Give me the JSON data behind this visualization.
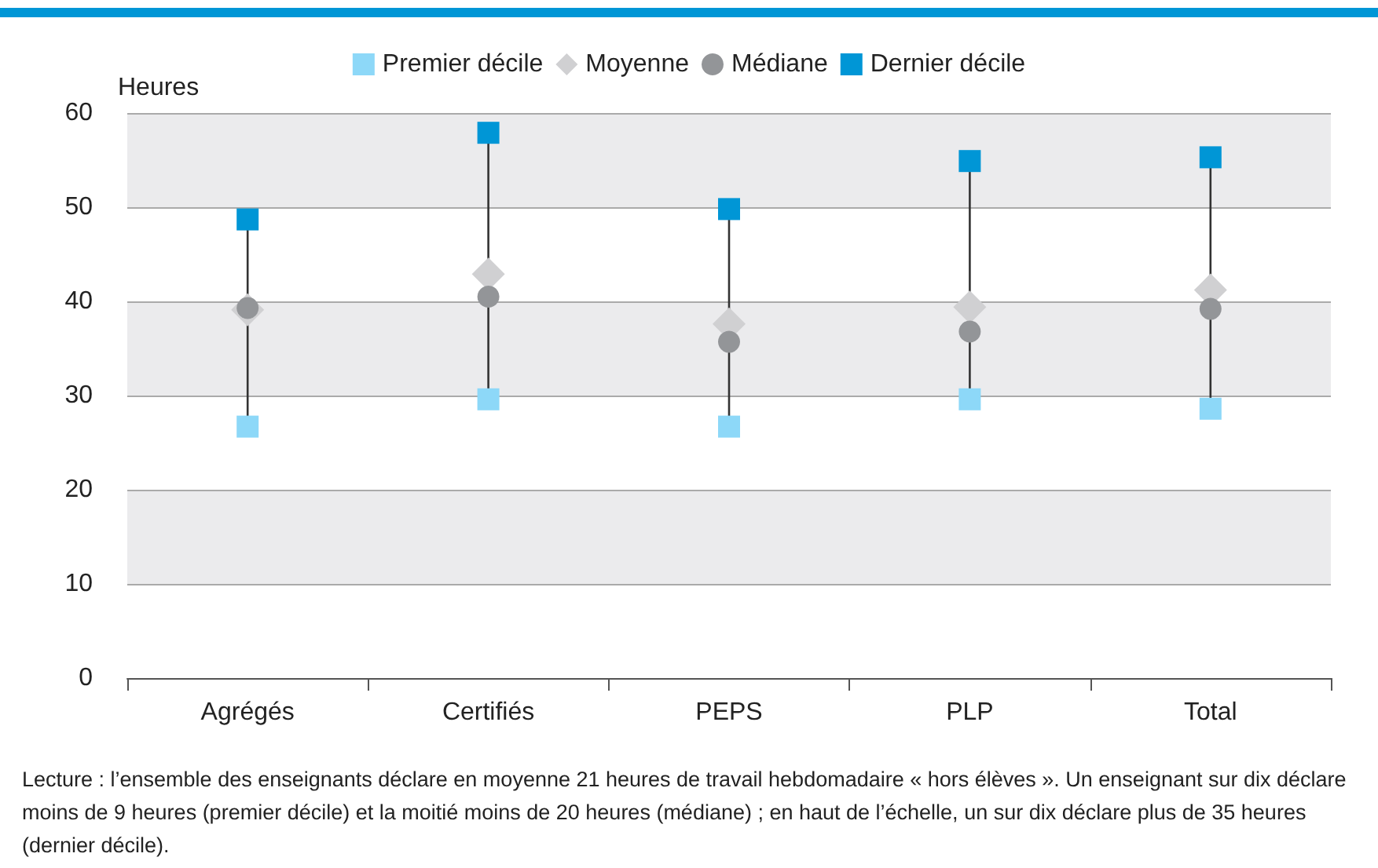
{
  "chart_data": {
    "type": "scatter",
    "ylabel": "Heures",
    "categories": [
      "Agrégés",
      "Certifiés",
      "PEPS",
      "PLP",
      "Total"
    ],
    "series": [
      {
        "name": "Premier décile",
        "color": "#8dd8f8",
        "marker": "square",
        "values": [
          26.7,
          29.6,
          26.7,
          29.6,
          28.6
        ]
      },
      {
        "name": "Moyenne",
        "color": "#d0d0d2",
        "marker": "diamond",
        "values": [
          39.1,
          42.9,
          37.6,
          39.4,
          41.2
        ]
      },
      {
        "name": "Médiane",
        "color": "#939598",
        "marker": "circle",
        "values": [
          39.3,
          40.5,
          35.7,
          36.8,
          39.2
        ]
      },
      {
        "name": "Dernier décile",
        "color": "#0096d6",
        "marker": "square",
        "values": [
          48.7,
          57.9,
          49.8,
          54.9,
          55.3
        ]
      }
    ],
    "ylim": [
      0,
      60
    ],
    "yticks": [
      0,
      10,
      20,
      30,
      40,
      50,
      60
    ],
    "grid": "y",
    "legend": "top",
    "annotations": [
      "Lecture : l’ensemble des enseignants déclare en moyenne 21 heures de travail hebdomadaire « hors élèves ». Un enseignant sur dix déclare moins de 9 heures (premier décile) et la moitié moins de 20 heures (médiane) ; en haut de l’échelle, un sur dix déclare plus de 35 heures (dernier décile)."
    ]
  }
}
